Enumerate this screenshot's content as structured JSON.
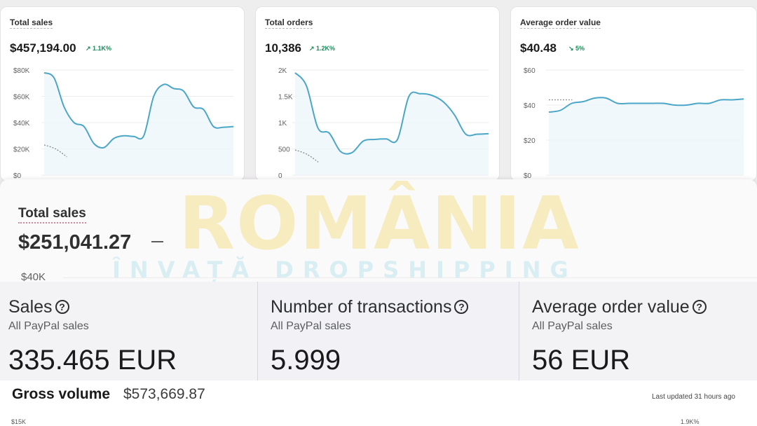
{
  "cards": [
    {
      "title": "Total sales",
      "value": "$457,194.00",
      "delta": "↗ 1.1K%",
      "yticks": [
        "$80K",
        "$60K",
        "$40K",
        "$20K",
        "$0"
      ],
      "ylim": [
        0,
        80000
      ],
      "series": [
        78000,
        74000,
        52000,
        40000,
        37000,
        24000,
        21000,
        28000,
        30000,
        29500,
        30000,
        60000,
        69000,
        66000,
        64000,
        52000,
        50000,
        37000,
        36500,
        37000
      ],
      "prev_series": [
        23000,
        20000,
        14000
      ],
      "color_line": "#4ba6c7",
      "color_prev": "#8a8a8a"
    },
    {
      "title": "Total orders",
      "value": "10,386",
      "delta": "↗ 1.2K%",
      "yticks": [
        "2K",
        "1.5K",
        "1K",
        "500",
        "0"
      ],
      "ylim": [
        0,
        2000
      ],
      "series": [
        1950,
        1700,
        900,
        800,
        450,
        430,
        650,
        680,
        690,
        680,
        1500,
        1550,
        1520,
        1400,
        1150,
        780,
        780,
        790
      ],
      "prev_series": [
        480,
        400,
        250
      ],
      "color_line": "#4ba6c7",
      "color_prev": "#8a8a8a"
    },
    {
      "title": "Average order value",
      "value": "$40.48",
      "delta": "↘ 5%",
      "yticks": [
        "$60",
        "$40",
        "$20",
        "$0"
      ],
      "ylim": [
        0,
        60
      ],
      "series": [
        36,
        37,
        41,
        42,
        44,
        44,
        41,
        41,
        41,
        41,
        41,
        40,
        40,
        41,
        41,
        43,
        43,
        43.5
      ],
      "prev_series": [
        43,
        43,
        43
      ],
      "color_line": "#4ba6c7",
      "color_prev": "#8a8a8a"
    }
  ],
  "watermark": {
    "title": "ROMÂNIA",
    "subtitle": "ÎNVAȚĂ DROPSHIPPING"
  },
  "shopify_panel": {
    "title": "Total sales",
    "value": "$251,041.27",
    "ytick": "$40K"
  },
  "paypal": [
    {
      "label": "Sales",
      "sub": "All PayPal sales",
      "value": "335.465 EUR"
    },
    {
      "label": "Number of transactions",
      "sub": "All PayPal sales",
      "value": "5.999"
    },
    {
      "label": "Average order value",
      "sub": "All PayPal sales",
      "value": "56 EUR"
    }
  ],
  "gross_volume": {
    "title": "Gross volume",
    "value": "$573,669.87",
    "updated": "Last updated 31 hours ago",
    "ytick": "$15K",
    "pct": "1.9K%"
  }
}
